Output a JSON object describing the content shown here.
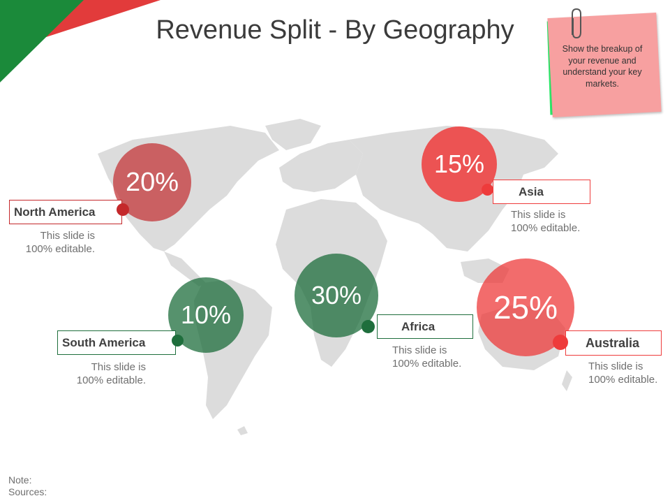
{
  "slide": {
    "title": "Revenue Split - By Geography",
    "note_label": "Note:",
    "sources_label": "Sources:"
  },
  "sticky_note": {
    "text": "Show the breakup of your revenue and understand your key markets.",
    "icon": "paperclip-icon"
  },
  "colors": {
    "red_dark": "#c4282b",
    "red": "#ee3b3b",
    "green_dark": "#1e6e3c",
    "green_corner": "#1b8a3a",
    "map_gray": "#dcdcdc",
    "sticky_pink": "#f7a0a0",
    "sticky_green": "#2ee86a"
  },
  "regions": [
    {
      "name": "North America",
      "percent": "20%",
      "desc_line1": "This slide is",
      "desc_line2": "100% editable."
    },
    {
      "name": "South America",
      "percent": "10%",
      "desc_line1": "This slide is",
      "desc_line2": "100% editable."
    },
    {
      "name": "Africa",
      "percent": "30%",
      "desc_line1": "This slide is",
      "desc_line2": "100% editable."
    },
    {
      "name": "Asia",
      "percent": "15%",
      "desc_line1": "This slide is",
      "desc_line2": "100% editable."
    },
    {
      "name": "Australia",
      "percent": "25%",
      "desc_line1": "This slide is",
      "desc_line2": "100% editable."
    }
  ]
}
